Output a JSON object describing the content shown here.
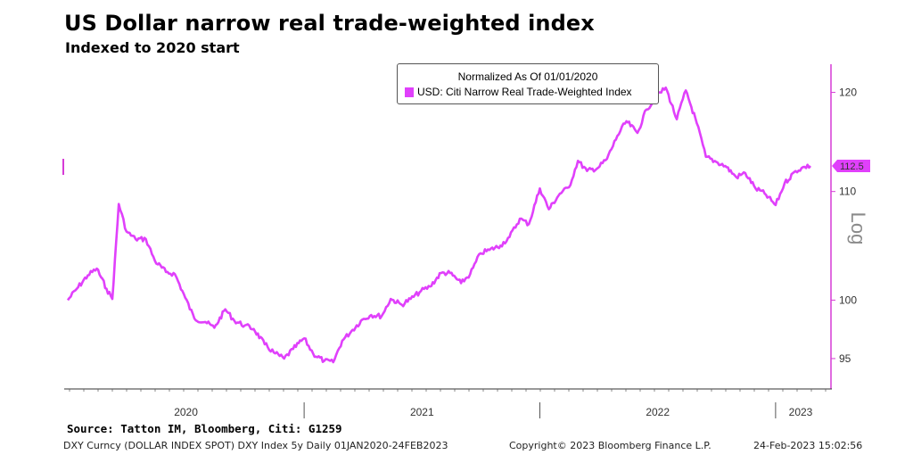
{
  "header": {
    "title": "US Dollar narrow real trade-weighted index",
    "subtitle": "Indexed to 2020 start"
  },
  "legend": {
    "normalized": "Normalized As Of 01/01/2020",
    "series_label": "USD: Citi Narrow Real Trade-Weighted Index"
  },
  "last_value_label": "112.5",
  "axis_scale_label": "Log",
  "source": "Source: Tatton IM, Bloomberg, Citi: G1259",
  "footer": {
    "left": "DXY Curncy (DOLLAR INDEX SPOT) DXY Index 5y  Daily 01JAN2020-24FEB2023",
    "middle": "Copyright© 2023 Bloomberg Finance L.P.",
    "right": "24-Feb-2023  15:02:56"
  },
  "colors": {
    "series": "#e040fb",
    "axis": "#d63bd6",
    "base_axis": "#333333"
  },
  "chart_data": {
    "type": "line",
    "title": "US Dollar narrow real trade-weighted index",
    "subtitle": "Indexed to 2020 start",
    "xlabel": "",
    "ylabel": "",
    "yscale": "log",
    "ylim": [
      92.5,
      123
    ],
    "y_ticks": [
      95,
      100,
      110,
      120
    ],
    "x_tick_labels": [
      "2020",
      "2021",
      "2022",
      "2023"
    ],
    "grid": false,
    "legend_position": "top-center",
    "series": [
      {
        "name": "USD: Citi Narrow Real Trade-Weighted Index",
        "x": [
          "2020-01-01",
          "2020-01-15",
          "2020-02-01",
          "2020-02-15",
          "2020-03-01",
          "2020-03-10",
          "2020-03-20",
          "2020-04-01",
          "2020-04-15",
          "2020-05-01",
          "2020-05-15",
          "2020-06-01",
          "2020-06-15",
          "2020-07-01",
          "2020-07-15",
          "2020-08-01",
          "2020-08-15",
          "2020-09-01",
          "2020-09-15",
          "2020-10-01",
          "2020-10-15",
          "2020-11-01",
          "2020-11-15",
          "2020-12-01",
          "2020-12-15",
          "2021-01-01",
          "2021-01-15",
          "2021-02-01",
          "2021-02-15",
          "2021-03-01",
          "2021-03-15",
          "2021-04-01",
          "2021-04-15",
          "2021-05-01",
          "2021-05-15",
          "2021-06-01",
          "2021-06-15",
          "2021-07-01",
          "2021-07-15",
          "2021-08-01",
          "2021-08-15",
          "2021-09-01",
          "2021-09-15",
          "2021-10-01",
          "2021-10-15",
          "2021-11-01",
          "2021-11-15",
          "2021-12-01",
          "2021-12-15",
          "2022-01-01",
          "2022-01-15",
          "2022-02-01",
          "2022-02-15",
          "2022-03-01",
          "2022-03-15",
          "2022-04-01",
          "2022-04-15",
          "2022-05-01",
          "2022-05-15",
          "2022-06-01",
          "2022-06-15",
          "2022-07-01",
          "2022-07-15",
          "2022-08-01",
          "2022-08-15",
          "2022-09-01",
          "2022-09-15",
          "2022-10-01",
          "2022-10-15",
          "2022-11-01",
          "2022-11-15",
          "2022-12-01",
          "2022-12-15",
          "2023-01-01",
          "2023-01-15",
          "2023-02-01",
          "2023-02-15",
          "2023-02-24"
        ],
        "values": [
          100.0,
          101.0,
          102.2,
          102.8,
          101.0,
          100.1,
          108.8,
          106.2,
          105.5,
          105.5,
          103.5,
          102.5,
          102.3,
          100.2,
          98.4,
          98.1,
          97.6,
          99.2,
          98.2,
          97.8,
          97.5,
          96.2,
          95.5,
          95.0,
          95.8,
          96.7,
          95.4,
          94.8,
          94.7,
          96.5,
          97.3,
          98.3,
          98.7,
          98.6,
          100.1,
          99.6,
          100.1,
          100.8,
          101.2,
          102.4,
          102.4,
          101.5,
          102.3,
          104.2,
          104.5,
          104.9,
          105.7,
          107.4,
          106.9,
          110.3,
          108.3,
          109.8,
          110.4,
          113.0,
          112.0,
          112.3,
          113.2,
          115.5,
          117.0,
          115.8,
          118.2,
          119.6,
          120.5,
          117.2,
          120.2,
          116.8,
          113.4,
          112.9,
          112.5,
          111.4,
          111.8,
          110.3,
          109.8,
          108.7,
          110.8,
          112.0,
          112.4,
          112.5
        ]
      }
    ]
  }
}
